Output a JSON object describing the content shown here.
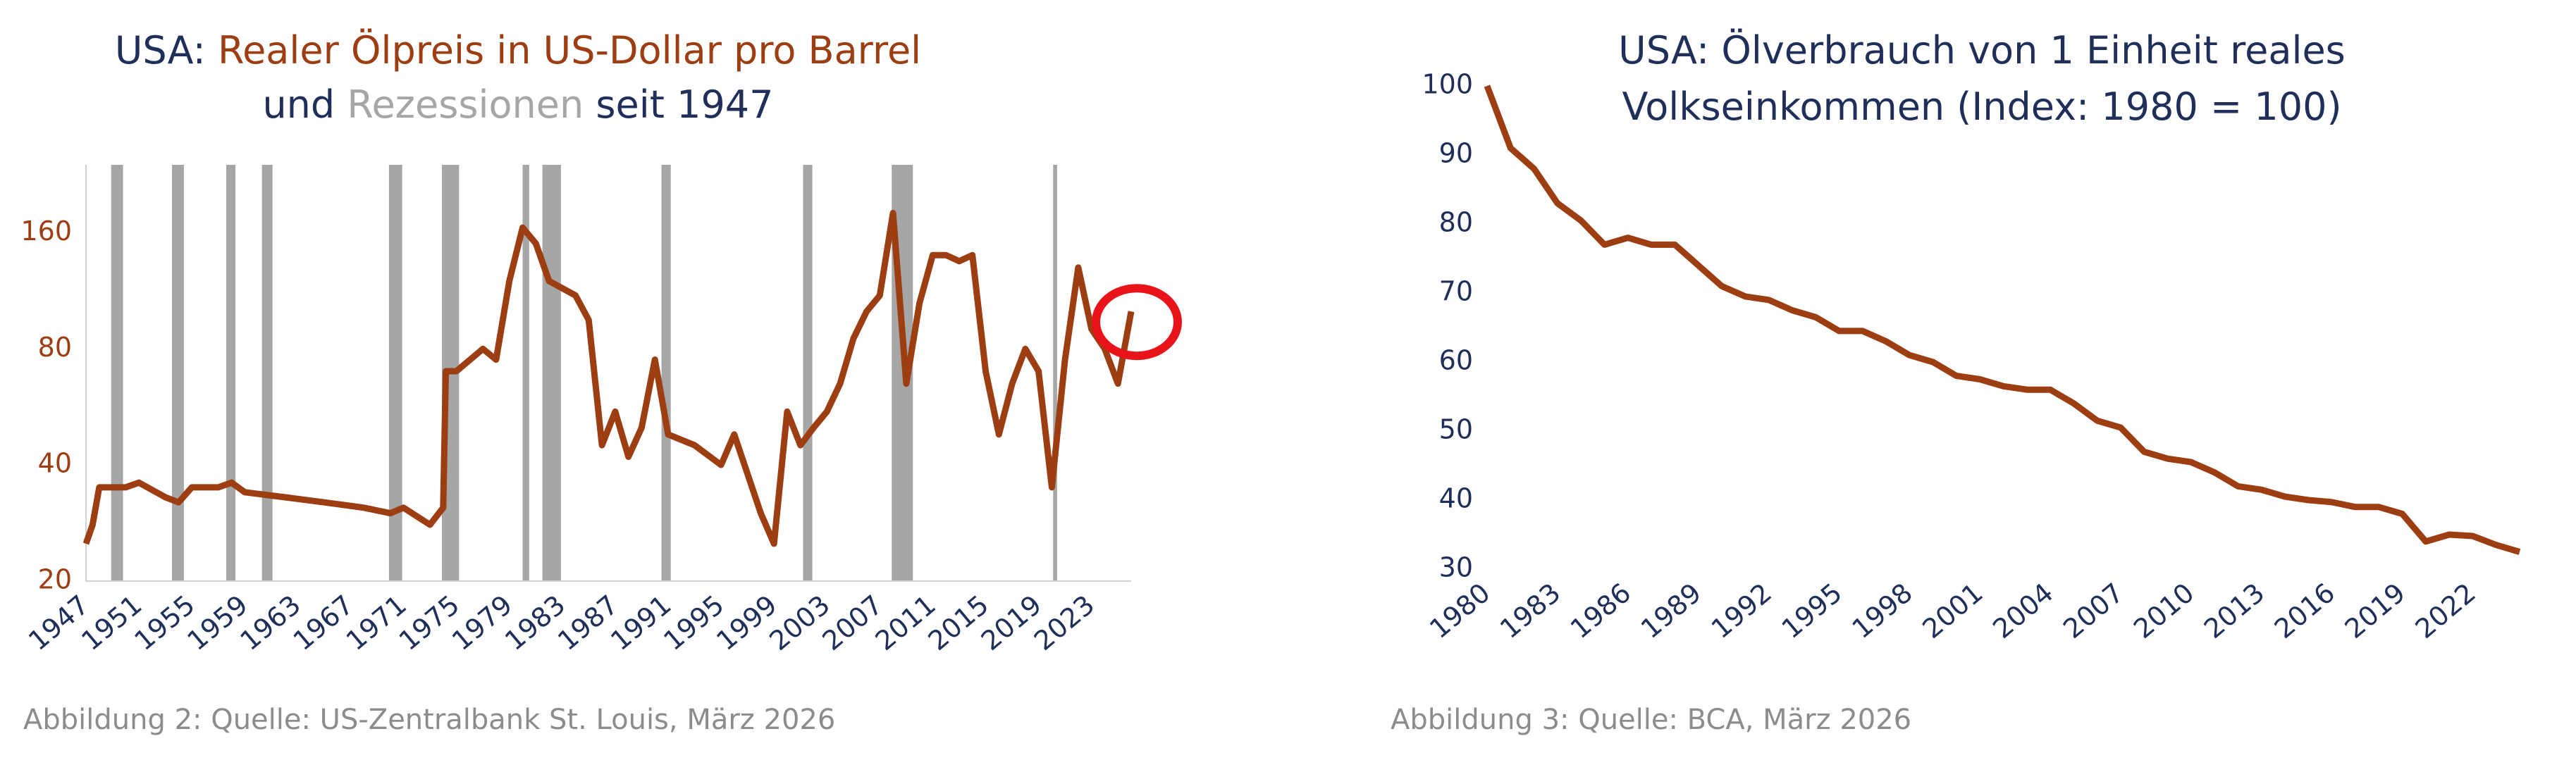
{
  "chart_data": [
    {
      "type": "line",
      "title": [
        [
          "USA: ",
          "Realer Ölpreis in US-Dollar pro Barrel"
        ],
        [
          "und ",
          "Rezessionen",
          " seit 1947"
        ]
      ],
      "title_colors": [
        [
          "#1f2f5a",
          "#9c3d12"
        ],
        [
          "#1f2f5a",
          "#a6a6a6",
          "#1f2f5a"
        ]
      ],
      "caption": "Abbildung 2: Quelle: US-Zentralbank St. Louis, März 2026",
      "y_scale": "log",
      "xlim": [
        1947,
        2026
      ],
      "xticks": [
        1947,
        1951,
        1955,
        1959,
        1963,
        1967,
        1971,
        1975,
        1979,
        1983,
        1987,
        1991,
        1995,
        1999,
        2003,
        2007,
        2011,
        2015,
        2019,
        2023
      ],
      "ylim": [
        20,
        240
      ],
      "yticks": [
        20,
        40,
        80,
        160
      ],
      "shading": {
        "color": "#a6a6a6",
        "x_ranges": [
          [
            1948.9,
            1949.8
          ],
          [
            1953.5,
            1954.4
          ],
          [
            1957.6,
            1958.3
          ],
          [
            1960.3,
            1961.1
          ],
          [
            1969.9,
            1970.9
          ],
          [
            1973.9,
            1975.2
          ],
          [
            1980.0,
            1980.5
          ],
          [
            1981.5,
            1982.9
          ],
          [
            1990.5,
            1991.2
          ],
          [
            2001.2,
            2001.9
          ],
          [
            2007.9,
            2009.5
          ],
          [
            2020.1,
            2020.4
          ]
        ]
      },
      "series": [
        {
          "name": "Realer Ölpreis",
          "color": "#9c3d12",
          "x": [
            1947,
            1947.5,
            1948,
            1950,
            1951,
            1953,
            1954,
            1955,
            1957,
            1958,
            1959,
            1962,
            1965,
            1968,
            1970,
            1971,
            1973,
            1974,
            1974.2,
            1975,
            1977,
            1978,
            1979,
            1980,
            1981,
            1982,
            1984,
            1985,
            1986,
            1987,
            1988,
            1989,
            1990,
            1991,
            1993,
            1995,
            1996,
            1998,
            1999,
            2000,
            2001,
            2002,
            2003,
            2004,
            2005,
            2006,
            2007,
            2008,
            2009,
            2010,
            2011,
            2012,
            2013,
            2014,
            2015,
            2016,
            2017,
            2018,
            2019,
            2020,
            2021,
            2022,
            2023,
            2024,
            2025,
            2026
          ],
          "values": [
            25,
            28,
            35,
            35,
            36,
            33,
            32,
            35,
            35,
            36,
            34,
            33,
            32,
            31,
            30,
            31,
            28,
            31,
            70,
            70,
            80,
            75,
            120,
            165,
            150,
            120,
            110,
            95,
            45,
            55,
            42,
            50,
            75,
            48,
            45,
            40,
            48,
            30,
            25,
            55,
            45,
            50,
            55,
            65,
            85,
            100,
            110,
            180,
            65,
            105,
            140,
            140,
            135,
            140,
            70,
            48,
            65,
            80,
            70,
            35,
            75,
            130,
            90,
            80,
            65,
            100
          ]
        }
      ]
    },
    {
      "type": "line",
      "title": [
        [
          "USA: Ölverbrauch von 1 Einheit reales"
        ],
        [
          "Volkseinkommen (Index: 1980 = 100)"
        ]
      ],
      "title_colors": [
        [
          "#1f2f5a"
        ],
        [
          "#1f2f5a"
        ]
      ],
      "caption": "Abbildung 3: Quelle: BCA, März 2026",
      "xlim": [
        1980,
        2024
      ],
      "xticks": [
        1980,
        1983,
        1986,
        1989,
        1992,
        1995,
        1998,
        2001,
        2004,
        2007,
        2010,
        2013,
        2016,
        2019,
        2022
      ],
      "ylim": [
        30,
        100
      ],
      "yticks": [
        30,
        40,
        50,
        60,
        70,
        80,
        90,
        100
      ],
      "series": [
        {
          "name": "Ölverbrauch",
          "color": "#9c3d12",
          "x": [
            1980,
            1981,
            1982,
            1983,
            1984,
            1985,
            1986,
            1987,
            1988,
            1989,
            1990,
            1991,
            1992,
            1993,
            1994,
            1995,
            1996,
            1997,
            1998,
            1999,
            2000,
            2001,
            2002,
            2003,
            2004,
            2005,
            2006,
            2007,
            2008,
            2009,
            2010,
            2011,
            2012,
            2013,
            2014,
            2015,
            2016,
            2017,
            2018,
            2019,
            2020,
            2021,
            2022,
            2023,
            2024
          ],
          "values": [
            100,
            91,
            88,
            83,
            80.5,
            77,
            78,
            77,
            77,
            74,
            71,
            69.5,
            69,
            67.5,
            66.5,
            64.5,
            64.5,
            63,
            61,
            60,
            58,
            57.5,
            56.5,
            56,
            56,
            54,
            51.5,
            50.5,
            47,
            46,
            45.5,
            44,
            42,
            41.5,
            40.5,
            40,
            39.7,
            39,
            39,
            38,
            34,
            35,
            34.8,
            33.5,
            32.5
          ]
        }
      ]
    }
  ]
}
